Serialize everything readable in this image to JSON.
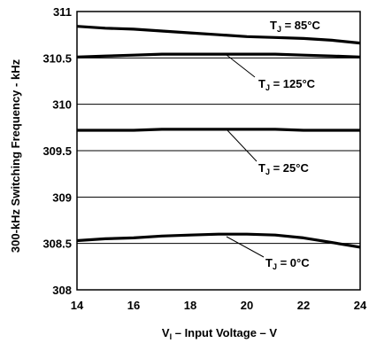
{
  "chart_data": {
    "type": "line",
    "xlabel_main": "V",
    "xlabel_sub": "I",
    "xlabel_rest": " – Input Voltage – V",
    "ylabel": "300-kHz Switching Frequency - kHz",
    "xlim": [
      14,
      24
    ],
    "ylim": [
      308,
      311
    ],
    "x_ticks": [
      "14",
      "16",
      "18",
      "20",
      "22",
      "24"
    ],
    "y_ticks": [
      "308",
      "308.5",
      "309",
      "309.5",
      "310",
      "310.5",
      "311"
    ],
    "grid": true,
    "series": [
      {
        "name_main": "T",
        "name_sub": "J",
        "name_rest": " = 85°C",
        "x": [
          14,
          15,
          16,
          17,
          18,
          19,
          20,
          21,
          22,
          23,
          24
        ],
        "y": [
          310.84,
          310.82,
          310.81,
          310.79,
          310.77,
          310.75,
          310.73,
          310.72,
          310.71,
          310.69,
          310.66
        ]
      },
      {
        "name_main": "T",
        "name_sub": "J",
        "name_rest": " = 125°C",
        "x": [
          14,
          15,
          16,
          17,
          18,
          19,
          20,
          21,
          22,
          23,
          24
        ],
        "y": [
          310.51,
          310.52,
          310.53,
          310.54,
          310.54,
          310.54,
          310.54,
          310.54,
          310.53,
          310.52,
          310.51
        ]
      },
      {
        "name_main": "T",
        "name_sub": "J",
        "name_rest": " = 25°C",
        "x": [
          14,
          15,
          16,
          17,
          18,
          19,
          20,
          21,
          22,
          23,
          24
        ],
        "y": [
          309.72,
          309.72,
          309.72,
          309.73,
          309.73,
          309.73,
          309.73,
          309.73,
          309.72,
          309.72,
          309.72
        ]
      },
      {
        "name_main": "T",
        "name_sub": "J",
        "name_rest": " = 0°C",
        "x": [
          14,
          15,
          16,
          17,
          18,
          19,
          20,
          21,
          22,
          23,
          24
        ],
        "y": [
          308.53,
          308.55,
          308.56,
          308.58,
          308.59,
          308.6,
          308.6,
          308.59,
          308.56,
          308.51,
          308.46
        ]
      }
    ],
    "colors": {
      "line": "#000000",
      "grid": "#000000"
    }
  }
}
